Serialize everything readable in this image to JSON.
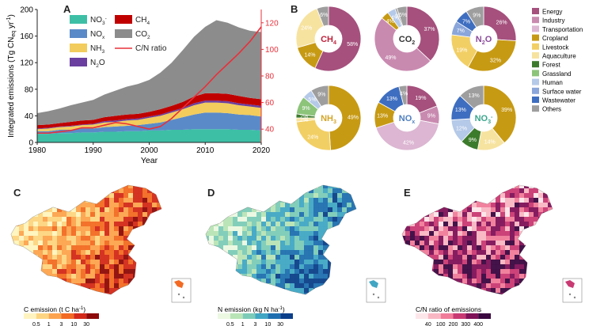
{
  "panel_a": {
    "letter": "A",
    "xlabel": "Year",
    "ylabel_left": "Integrated emissions (Tg CN",
    "ylabel_left_sub": "eq",
    "ylabel_left_tail": " yr",
    "ylabel_left_sup": "-1",
    "ylabel_left_close": ")",
    "legend": [
      {
        "label": "NO",
        "sub": "3",
        "sup": "-",
        "color": "#3dbfa6"
      },
      {
        "label": "CH",
        "sub": "4",
        "sup": "",
        "color": "#c00000"
      },
      {
        "label": "NO",
        "sub": "x",
        "sup": "",
        "color": "#5b8ac8"
      },
      {
        "label": "CO",
        "sub": "2",
        "sup": "",
        "color": "#8c8c8c"
      },
      {
        "label": "NH",
        "sub": "3",
        "sup": "",
        "color": "#f2cc5c"
      },
      {
        "label": "C/N ratio",
        "sub": "",
        "sup": "",
        "color": "#e8303a",
        "line": true
      },
      {
        "label": "N",
        "sub": "2",
        "sup": "",
        "tail": "O",
        "color": "#6a3fa0"
      }
    ]
  },
  "chart_data": [
    {
      "type": "area",
      "title": "",
      "xlabel": "Year",
      "ylabel": "Integrated emissions (Tg CNeq yr-1)",
      "y2label": "",
      "xlim": [
        1980,
        2020
      ],
      "ylim": [
        0,
        200
      ],
      "y2lim": [
        30,
        130
      ],
      "xticks": [
        1980,
        1990,
        2000,
        2010,
        2020
      ],
      "yticks": [
        0,
        40,
        80,
        120,
        160,
        200
      ],
      "y2ticks": [
        40,
        60,
        80,
        100,
        120
      ],
      "x": [
        1980,
        1982,
        1984,
        1986,
        1988,
        1990,
        1992,
        1994,
        1996,
        1998,
        2000,
        2002,
        2004,
        2006,
        2008,
        2010,
        2012,
        2014,
        2016,
        2018,
        2020
      ],
      "series": [
        {
          "name": "NO3-",
          "values": [
            13,
            13,
            14,
            14,
            15,
            15,
            16,
            16,
            17,
            17,
            18,
            18,
            19,
            19,
            20,
            20,
            20,
            20,
            19,
            19,
            18
          ]
        },
        {
          "name": "NOx",
          "values": [
            4,
            4,
            5,
            5,
            6,
            6,
            7,
            8,
            8,
            9,
            10,
            12,
            15,
            19,
            22,
            25,
            25,
            24,
            23,
            22,
            21
          ]
        },
        {
          "name": "NH3",
          "values": [
            3,
            4,
            4,
            5,
            5,
            6,
            7,
            7,
            8,
            8,
            9,
            10,
            11,
            12,
            14,
            15,
            15,
            15,
            14,
            13,
            13
          ]
        },
        {
          "name": "N2O",
          "values": [
            1,
            1,
            1,
            1,
            1,
            1,
            2,
            2,
            2,
            2,
            2,
            2,
            2,
            2,
            3,
            3,
            3,
            3,
            3,
            3,
            3
          ]
        },
        {
          "name": "CH4",
          "values": [
            5,
            5,
            5,
            6,
            6,
            6,
            6,
            7,
            7,
            7,
            7,
            8,
            8,
            9,
            10,
            11,
            11,
            11,
            11,
            10,
            10
          ]
        },
        {
          "name": "CO2",
          "values": [
            18,
            20,
            22,
            25,
            27,
            30,
            34,
            38,
            42,
            45,
            48,
            55,
            65,
            78,
            90,
            100,
            110,
            107,
            103,
            101,
            101
          ]
        }
      ],
      "line_series": {
        "name": "C/N ratio",
        "axis": "right",
        "values": [
          37,
          37,
          38,
          39,
          41,
          41,
          43,
          45,
          44,
          42,
          40,
          42,
          48,
          56,
          64,
          72,
          81,
          89,
          97,
          106,
          117
        ]
      }
    },
    {
      "type": "pie",
      "subtype": "donut",
      "categories": [
        "Energy",
        "Industry",
        "Transportation",
        "Cropland",
        "Livestock",
        "Aquaculture",
        "Forest",
        "Grassland",
        "Human",
        "Surface water",
        "Wastewater",
        "Others"
      ],
      "colors": [
        "#a5507d",
        "#c98ab0",
        "#dcb6d2",
        "#c79a14",
        "#f2cf64",
        "#f7e3a0",
        "#3d7b2c",
        "#8cc47a",
        "#b5c9e8",
        "#8aa6da",
        "#3e6ec0",
        "#9e9e9e"
      ],
      "charts": [
        {
          "name": "CH4",
          "slices": [
            [
              0,
              58
            ],
            [
              3,
              14
            ],
            [
              5,
              24
            ],
            [
              11,
              6
            ]
          ]
        },
        {
          "name": "CO2",
          "slices": [
            [
              0,
              37
            ],
            [
              1,
              49
            ],
            [
              3,
              4
            ],
            [
              8,
              4
            ],
            [
              11,
              1
            ],
            [
              11,
              5
            ]
          ]
        },
        {
          "name": "N2O",
          "slices": [
            [
              0,
              26
            ],
            [
              3,
              32
            ],
            [
              4,
              19
            ],
            [
              9,
              7
            ],
            [
              10,
              7
            ],
            [
              11,
              9
            ]
          ]
        },
        {
          "name": "NH3",
          "slices": [
            [
              3,
              49
            ],
            [
              4,
              24
            ],
            [
              5,
              2
            ],
            [
              6,
              2
            ],
            [
              7,
              9
            ],
            [
              8,
              5
            ],
            [
              11,
              9
            ]
          ]
        },
        {
          "name": "NOx",
          "slices": [
            [
              0,
              19
            ],
            [
              1,
              9
            ],
            [
              2,
              42
            ],
            [
              3,
              13
            ],
            [
              10,
              13
            ],
            [
              11,
              4
            ]
          ]
        },
        {
          "name": "NO3-",
          "slices": [
            [
              3,
              39
            ],
            [
              5,
              14
            ],
            [
              6,
              9
            ],
            [
              8,
              12
            ],
            [
              10,
              13
            ],
            [
              11,
              13
            ]
          ]
        }
      ]
    }
  ],
  "panel_b": {
    "letter": "B",
    "donuts": [
      {
        "name": "CH",
        "sub": "4",
        "sup": "",
        "color": "#c0223b",
        "labels": [
          "58%",
          "14%",
          "24%",
          "6%"
        ]
      },
      {
        "name": "CO",
        "sub": "2",
        "sup": "",
        "color": "#333333",
        "labels": [
          "37%",
          "49%",
          "4%",
          "4%",
          "1%",
          "5%"
        ]
      },
      {
        "name": "N",
        "sub": "2",
        "sup": "",
        "tail": "O",
        "color": "#8a4a9a",
        "labels": [
          "26%",
          "32%",
          "19%",
          "7%",
          "7%",
          "9%"
        ]
      },
      {
        "name": "NH",
        "sub": "3",
        "sup": "",
        "color": "#d4a62a",
        "labels": [
          "49%",
          "24%",
          "2%",
          "2%",
          "9%",
          "5%",
          "9%"
        ]
      },
      {
        "name": "NO",
        "sub": "x",
        "sup": "",
        "color": "#4f7fbf",
        "labels": [
          "19%",
          "9%",
          "42%",
          "13%",
          "13%",
          "4%"
        ]
      },
      {
        "name": "NO",
        "sub": "3",
        "sup": "-",
        "color": "#3aa58c",
        "labels": [
          "39%",
          "14%",
          "9%",
          "12%",
          "13%",
          "13%"
        ]
      }
    ],
    "legend": [
      "Energy",
      "Industry",
      "Transportation",
      "Cropland",
      "Livestock",
      "Aquaculture",
      "Forest",
      "Grassland",
      "Human",
      "Surface water",
      "Wastewater",
      "Others"
    ]
  },
  "panel_c": {
    "letter": "C",
    "cbar_title": "C emission (t C ha",
    "cbar_sup": "-1",
    "cbar_close": ")",
    "ticks": [
      "0.5",
      "1",
      "3",
      "10",
      "30"
    ],
    "colors": [
      "#fff4c0",
      "#fdd582",
      "#fca34f",
      "#f26a24",
      "#d3291a",
      "#8e0a0a"
    ]
  },
  "panel_d": {
    "letter": "D",
    "cbar_title": "N emission (kg N ha",
    "cbar_sup": "-1",
    "cbar_close": ")",
    "ticks": [
      "0.5",
      "1",
      "3",
      "10",
      "30"
    ],
    "colors": [
      "#ecf8e2",
      "#b8e4b6",
      "#7ccbb8",
      "#41a6c4",
      "#1f6fb0",
      "#0c3f8a"
    ]
  },
  "panel_e": {
    "letter": "E",
    "cbar_title": "C/N ratio of emissions",
    "ticks": [
      "40",
      "100",
      "200",
      "300",
      "400"
    ],
    "colors": [
      "#fde6ea",
      "#f9b7c4",
      "#f07c9a",
      "#c93a73",
      "#7f1258",
      "#3a0740"
    ]
  }
}
